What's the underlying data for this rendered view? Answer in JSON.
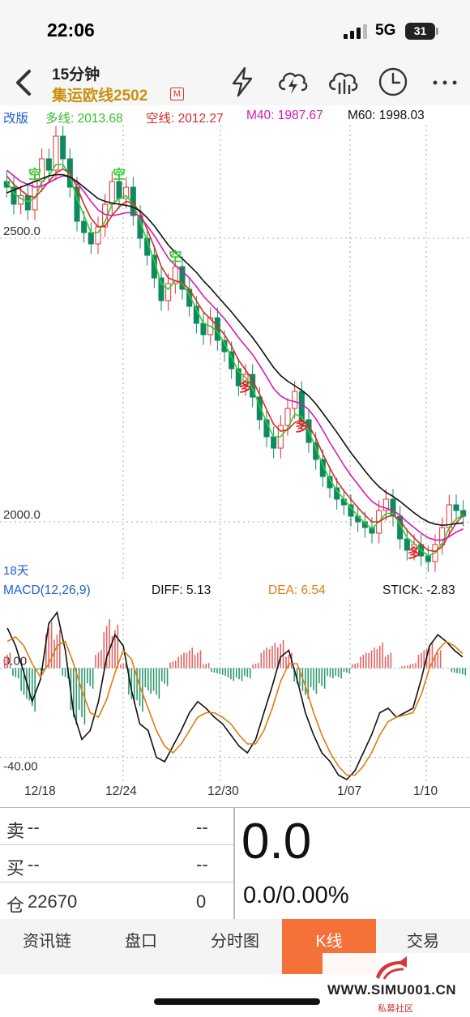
{
  "status_bar": {
    "time": "22:06",
    "network": "5G",
    "battery": "31"
  },
  "header": {
    "period": "15分钟",
    "instrument": "集运欧线2502",
    "badge": "M"
  },
  "ma_legend": {
    "mode": "改版",
    "fast": "多线: 2013.68",
    "slow": "空线: 2012.27",
    "m40": "M40: 1987.67",
    "m60": "M60: 1998.03"
  },
  "colors": {
    "up": "#e03030",
    "down": "#0f8a5f",
    "fast_line": "#33cc33",
    "slow_line": "#d92b2b",
    "m40_line": "#d61ab3",
    "m60_line": "#111111",
    "dea_line": "#e07b10",
    "accent_tab": "#f5713a",
    "label_blue": "#1e5fd0"
  },
  "main_chart": {
    "price_labels": [
      "2500.0",
      "2000.0"
    ],
    "signal_labels": {
      "sell": "空",
      "buy": "多"
    },
    "period_label": "18天"
  },
  "macd": {
    "title": "MACD(12,26,9)",
    "diff": "DIFF: 5.13",
    "dea": "DEA: 6.54",
    "stick": "STICK: -2.83",
    "axis_labels": [
      "0.00",
      "-40.00"
    ]
  },
  "date_axis": [
    "12/18",
    "12/24",
    "12/30",
    "1/07",
    "1/10"
  ],
  "quote": {
    "sell_label": "卖",
    "sell_price": "--",
    "sell_vol": "--",
    "buy_label": "买",
    "buy_price": "--",
    "buy_vol": "--",
    "oi_label": "仓",
    "oi_value": "22670",
    "oi_change": "0",
    "last_price": "0.0",
    "change": "0.0/0.00%"
  },
  "tabs": [
    "资讯链",
    "盘口",
    "分时图",
    "K线",
    "交易"
  ],
  "active_tab": "K线",
  "watermark": {
    "site": "WWW.SIMU001.CN",
    "sub": "私募社区"
  },
  "chart_data": {
    "type": "candlestick",
    "title": "集运欧线2502 15分钟",
    "x_ticks": [
      "12/18",
      "12/24",
      "12/30",
      "1/07",
      "1/10"
    ],
    "y_ticks": [
      2500.0,
      2000.0
    ],
    "ylim": [
      1900,
      2700
    ],
    "closes": [
      2590,
      2560,
      2575,
      2550,
      2600,
      2640,
      2620,
      2680,
      2640,
      2590,
      2530,
      2510,
      2490,
      2520,
      2560,
      2600,
      2570,
      2590,
      2540,
      2500,
      2470,
      2430,
      2390,
      2420,
      2450,
      2410,
      2380,
      2350,
      2330,
      2360,
      2320,
      2300,
      2270,
      2240,
      2260,
      2220,
      2180,
      2150,
      2130,
      2170,
      2200,
      2230,
      2180,
      2140,
      2110,
      2080,
      2060,
      2040,
      2030,
      2010,
      2000,
      1990,
      1980,
      2020,
      2040,
      2010,
      1970,
      1950,
      1960,
      1940,
      1930,
      1960,
      1990,
      2030,
      2020,
      2010
    ],
    "series": [
      {
        "name": "多线",
        "values": [
          2600,
          2580,
          2570,
          2565,
          2570,
          2600,
          2610,
          2630,
          2630,
          2610,
          2570,
          2540,
          2510,
          2510,
          2530,
          2560,
          2570,
          2575,
          2560,
          2530,
          2495,
          2460,
          2420,
          2410,
          2425,
          2420,
          2400,
          2375,
          2350,
          2345,
          2335,
          2315,
          2290,
          2265,
          2255,
          2235,
          2205,
          2175,
          2150,
          2150,
          2165,
          2190,
          2185,
          2160,
          2130,
          2100,
          2075,
          2055,
          2040,
          2025,
          2010,
          1998,
          1988,
          2000,
          2015,
          2015,
          1995,
          1972,
          1962,
          1950,
          1940,
          1945,
          1962,
          1990,
          2005,
          2013
        ]
      },
      {
        "name": "空线",
        "values": [
          2610,
          2595,
          2585,
          2575,
          2572,
          2585,
          2600,
          2615,
          2622,
          2615,
          2590,
          2560,
          2535,
          2520,
          2522,
          2540,
          2555,
          2565,
          2562,
          2545,
          2515,
          2485,
          2450,
          2430,
          2425,
          2422,
          2410,
          2390,
          2370,
          2358,
          2345,
          2330,
          2310,
          2285,
          2268,
          2250,
          2225,
          2198,
          2172,
          2160,
          2162,
          2175,
          2180,
          2170,
          2148,
          2120,
          2095,
          2072,
          2055,
          2040,
          2025,
          2012,
          2000,
          2000,
          2008,
          2012,
          2003,
          1985,
          1972,
          1960,
          1950,
          1948,
          1956,
          1978,
          1998,
          2012
        ]
      },
      {
        "name": "M40",
        "values": [
          2620,
          2610,
          2600,
          2595,
          2590,
          2592,
          2598,
          2605,
          2610,
          2608,
          2598,
          2582,
          2565,
          2550,
          2542,
          2540,
          2542,
          2545,
          2545,
          2538,
          2522,
          2505,
          2485,
          2465,
          2452,
          2442,
          2430,
          2415,
          2398,
          2385,
          2372,
          2358,
          2342,
          2325,
          2310,
          2295,
          2276,
          2256,
          2235,
          2222,
          2215,
          2212,
          2208,
          2198,
          2182,
          2162,
          2140,
          2120,
          2100,
          2082,
          2066,
          2050,
          2036,
          2028,
          2024,
          2020,
          2012,
          2000,
          1990,
          1980,
          1972,
          1968,
          1968,
          1974,
          1982,
          1987.67
        ]
      },
      {
        "name": "M60",
        "values": [
          2580,
          2585,
          2590,
          2595,
          2600,
          2605,
          2610,
          2612,
          2612,
          2608,
          2600,
          2590,
          2580,
          2570,
          2565,
          2562,
          2560,
          2558,
          2555,
          2548,
          2536,
          2522,
          2505,
          2488,
          2475,
          2464,
          2452,
          2440,
          2425,
          2412,
          2398,
          2384,
          2370,
          2355,
          2340,
          2325,
          2308,
          2290,
          2272,
          2258,
          2248,
          2240,
          2232,
          2222,
          2208,
          2192,
          2175,
          2158,
          2140,
          2122,
          2106,
          2090,
          2075,
          2062,
          2052,
          2045,
          2036,
          2026,
          2016,
          2007,
          2000,
          1996,
          1994,
          1995,
          1997,
          1998.03
        ]
      }
    ],
    "macd": {
      "ylim": [
        -50,
        30
      ],
      "dif": [
        18,
        10,
        -2,
        -15,
        -5,
        20,
        25,
        8,
        -20,
        -32,
        -28,
        -15,
        5,
        15,
        10,
        -10,
        -25,
        -28,
        -40,
        -42,
        -35,
        -28,
        -20,
        -15,
        -18,
        -22,
        -25,
        -30,
        -35,
        -38,
        -32,
        -20,
        -8,
        5,
        8,
        -5,
        -20,
        -30,
        -38,
        -42,
        -48,
        -50,
        -46,
        -38,
        -30,
        -20,
        -18,
        -22,
        -20,
        -18,
        -5,
        10,
        15,
        12,
        8,
        5
      ],
      "dea": [
        12,
        14,
        10,
        2,
        -4,
        2,
        10,
        12,
        2,
        -10,
        -20,
        -22,
        -14,
        -2,
        8,
        4,
        -8,
        -18,
        -28,
        -35,
        -38,
        -34,
        -28,
        -22,
        -20,
        -20,
        -22,
        -25,
        -30,
        -34,
        -34,
        -28,
        -18,
        -6,
        2,
        2,
        -8,
        -20,
        -30,
        -38,
        -44,
        -48,
        -48,
        -44,
        -38,
        -30,
        -24,
        -22,
        -21,
        -20,
        -12,
        0,
        8,
        12,
        10,
        6.54
      ],
      "stick": [
        6,
        -4,
        -12,
        -17,
        -1,
        18,
        15,
        -4,
        -22,
        -22,
        -8,
        7,
        19,
        17,
        2,
        -14,
        -17,
        -10,
        -12,
        -7,
        3,
        6,
        8,
        7,
        2,
        -2,
        -3,
        -5,
        -5,
        -4,
        2,
        8,
        10,
        11,
        6,
        -7,
        -12,
        -10,
        -8,
        -4,
        -4,
        -2,
        2,
        6,
        8,
        10,
        6,
        0,
        1,
        2,
        7,
        10,
        7,
        0,
        -2,
        -2.83
      ]
    }
  }
}
